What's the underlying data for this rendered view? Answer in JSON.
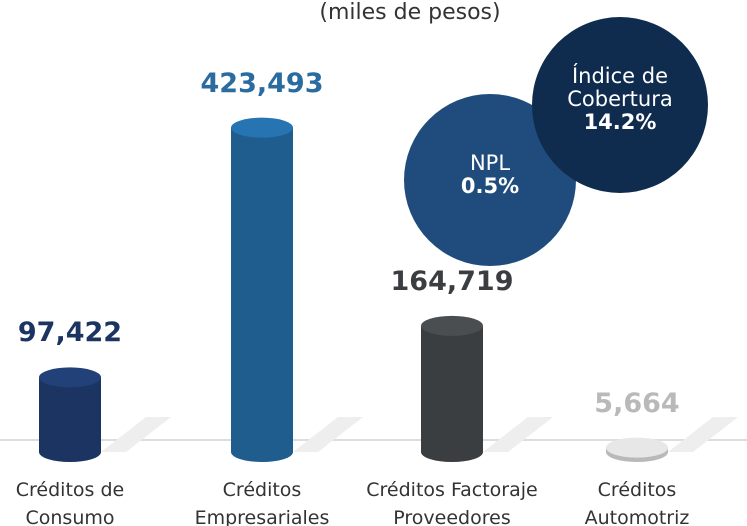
{
  "chart_data": {
    "type": "bar",
    "subtitle": "(miles de pesos)",
    "categories": [
      "Créditos de Consumo",
      "Créditos Empresariales",
      "Créditos Factoraje Proveedores",
      "Créditos Automotriz"
    ],
    "values": [
      97422,
      423493,
      164719,
      5664
    ],
    "value_labels": [
      "97,422",
      "423,493",
      "164,719",
      "5,664"
    ],
    "colors": [
      "#1b3461",
      "#1f5d8f",
      "#3b3e41",
      "#b9b9b9"
    ],
    "ylim": [
      0,
      440000
    ],
    "annotations": [
      {
        "label": "NPL",
        "value": 0.5,
        "value_label": "0.5%",
        "color": "#1f4c7c"
      },
      {
        "label": "Índice de Cobertura",
        "value": 14.2,
        "value_label": "14.2%",
        "color": "#0f2c4e"
      }
    ]
  }
}
